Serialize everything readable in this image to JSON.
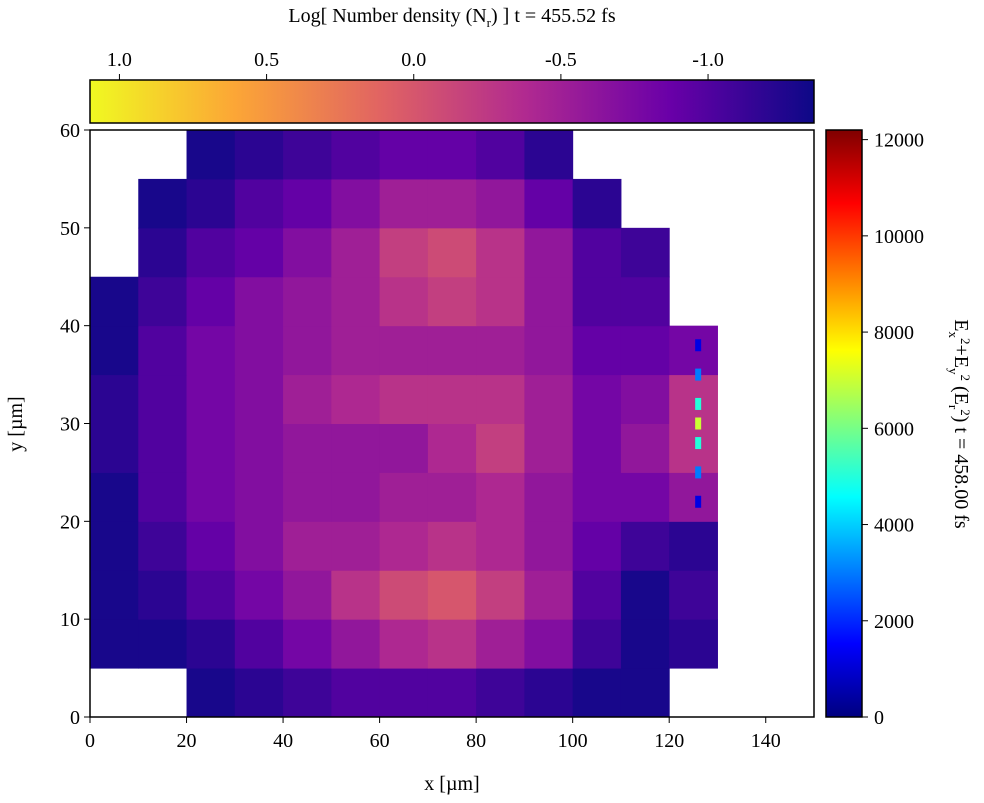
{
  "chart_data": {
    "type": "heatmap",
    "xlabel": "x [µm]",
    "ylabel": "y [µm]",
    "xlim": [
      0,
      150
    ],
    "ylim": [
      0,
      60
    ],
    "xticks": [
      0,
      20,
      40,
      60,
      80,
      100,
      120,
      140
    ],
    "yticks": [
      0,
      10,
      20,
      30,
      40,
      50,
      60
    ],
    "x_bins": [
      0,
      10,
      20,
      30,
      40,
      50,
      60,
      70,
      80,
      90,
      100,
      110,
      120,
      130,
      140,
      150
    ],
    "y_bins": [
      0,
      5,
      10,
      15,
      20,
      25,
      30,
      35,
      40,
      45,
      50,
      55,
      60
    ],
    "values": [
      [
        null,
        null,
        -1.3,
        -1.2,
        -1.1,
        -1.0,
        -1.0,
        -1.0,
        -1.1,
        -1.2,
        -1.3,
        -1.3,
        null,
        null,
        null
      ],
      [
        -1.3,
        -1.3,
        -1.2,
        -1.0,
        -0.8,
        -0.6,
        -0.4,
        -0.3,
        -0.5,
        -0.7,
        -1.1,
        -1.3,
        -1.2,
        null,
        null
      ],
      [
        -1.3,
        -1.2,
        -1.0,
        -0.8,
        -0.6,
        -0.3,
        -0.1,
        0.0,
        -0.2,
        -0.5,
        -1.0,
        -1.3,
        -1.1,
        null,
        null
      ],
      [
        -1.3,
        -1.1,
        -0.9,
        -0.7,
        -0.5,
        -0.5,
        -0.4,
        -0.3,
        -0.4,
        -0.6,
        -0.9,
        -1.1,
        -1.2,
        null,
        null
      ],
      [
        -1.3,
        -1.0,
        -0.8,
        -0.7,
        -0.6,
        -0.6,
        -0.5,
        -0.5,
        -0.4,
        -0.6,
        -0.8,
        -0.8,
        -0.6,
        null,
        null
      ],
      [
        -1.2,
        -1.0,
        -0.8,
        -0.7,
        -0.6,
        -0.6,
        -0.6,
        -0.4,
        -0.2,
        -0.5,
        -0.8,
        -0.6,
        -0.3,
        null,
        null
      ],
      [
        -1.2,
        -1.0,
        -0.8,
        -0.7,
        -0.5,
        -0.4,
        -0.3,
        -0.3,
        -0.3,
        -0.5,
        -0.8,
        -0.7,
        -0.3,
        null,
        null
      ],
      [
        -1.3,
        -1.0,
        -0.8,
        -0.7,
        -0.6,
        -0.5,
        -0.5,
        -0.5,
        -0.5,
        -0.6,
        -0.9,
        -0.9,
        -0.8,
        null,
        null
      ],
      [
        -1.3,
        -1.1,
        -0.9,
        -0.7,
        -0.6,
        -0.5,
        -0.3,
        -0.2,
        -0.3,
        -0.6,
        -1.0,
        -1.0,
        null,
        null,
        null
      ],
      [
        null,
        -1.2,
        -1.0,
        -0.9,
        -0.7,
        -0.5,
        -0.2,
        -0.1,
        -0.3,
        -0.6,
        -1.0,
        -1.1,
        null,
        null,
        null
      ],
      [
        null,
        -1.3,
        -1.2,
        -1.0,
        -0.9,
        -0.7,
        -0.5,
        -0.5,
        -0.6,
        -0.9,
        -1.2,
        null,
        null,
        null,
        null
      ],
      [
        null,
        null,
        -1.3,
        -1.2,
        -1.1,
        -1.0,
        -0.9,
        -0.9,
        -1.0,
        -1.2,
        null,
        null,
        null,
        null,
        null
      ]
    ],
    "colormap": [
      "#0d0887",
      "#6a00a8",
      "#b12a90",
      "#e16462",
      "#fca636",
      "#f0f921"
    ],
    "colorbar": {
      "label_parts": [
        "Log[ Number density (N",
        "r",
        ") ]  t = 455.52 fs"
      ],
      "clim": [
        1.1,
        -1.36
      ],
      "ticks": [
        1.0,
        0.5,
        0.0,
        -0.5,
        -1.0
      ],
      "tick_labels": [
        "1.0",
        "0.5",
        "0.0",
        "-0.5",
        "-1.0"
      ]
    },
    "field": {
      "x": [
        126,
        126,
        126,
        126,
        126,
        126,
        126
      ],
      "y": [
        22,
        25,
        28,
        30,
        32,
        35,
        38
      ],
      "values": [
        1200,
        3000,
        5000,
        7000,
        5000,
        3000,
        1200
      ],
      "colormap": [
        "#00007f",
        "#0000ff",
        "#007fff",
        "#00ffff",
        "#7fff7f",
        "#ffff00",
        "#ff7f00",
        "#ff0000",
        "#7f0000"
      ],
      "colorbar": {
        "label_parts": [
          "E",
          "x",
          "2",
          "+E",
          "y",
          "2",
          " (E",
          "r",
          "2",
          ")  t = 458.00 fs"
        ],
        "clim": [
          0,
          12200
        ],
        "ticks": [
          0,
          2000,
          4000,
          6000,
          8000,
          10000,
          12000
        ]
      }
    }
  }
}
